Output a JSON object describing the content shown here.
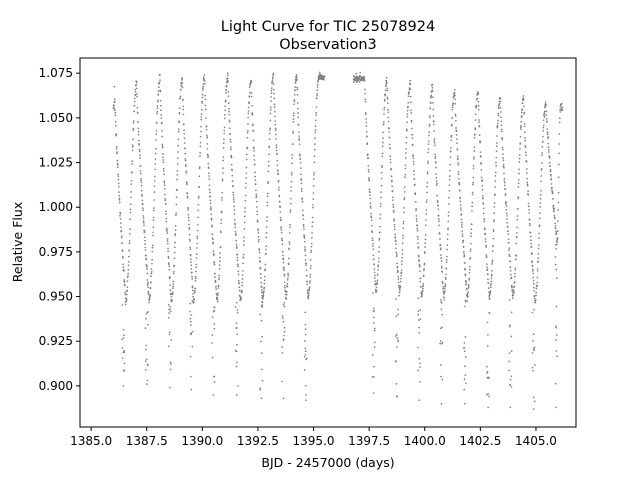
{
  "chart_data": {
    "type": "scatter",
    "title": "Light Curve for TIC 25078924",
    "subtitle": "Observation3",
    "xlabel": "BJD - 2457000 (days)",
    "ylabel": "Relative Flux",
    "xlim": [
      1384.5,
      1406.8
    ],
    "ylim": [
      0.877,
      1.0835
    ],
    "xticks": [
      1385.0,
      1387.5,
      1390.0,
      1392.5,
      1395.0,
      1397.5,
      1400.0,
      1402.5,
      1405.0
    ],
    "xtick_labels": [
      "1385.0",
      "1387.5",
      "1390.0",
      "1392.5",
      "1395.0",
      "1397.5",
      "1400.0",
      "1402.5",
      "1405.0"
    ],
    "yticks": [
      0.9,
      0.925,
      0.95,
      0.975,
      1.0,
      1.025,
      1.05,
      1.075
    ],
    "ytick_labels": [
      "0.900",
      "0.925",
      "0.950",
      "0.975",
      "1.000",
      "1.025",
      "1.050",
      "1.075"
    ],
    "grid": false,
    "marker_color": "#7f7f7f",
    "series": [
      {
        "segments": [
          {
            "x_start": 1386.0,
            "x_end": 1395.5
          },
          {
            "x_start": 1396.8,
            "x_end": 1406.2
          }
        ],
        "peaks": [
          {
            "x": 1386.05,
            "flux": 1.067
          },
          {
            "x": 1387.05,
            "flux": 1.069
          },
          {
            "x": 1388.1,
            "flux": 1.072
          },
          {
            "x": 1389.1,
            "flux": 1.072
          },
          {
            "x": 1390.1,
            "flux": 1.073
          },
          {
            "x": 1391.15,
            "flux": 1.073
          },
          {
            "x": 1392.2,
            "flux": 1.071
          },
          {
            "x": 1393.2,
            "flux": 1.074
          },
          {
            "x": 1394.25,
            "flux": 1.074
          },
          {
            "x": 1395.25,
            "flux": 1.073
          },
          {
            "x": 1397.3,
            "flux": 1.072
          },
          {
            "x": 1398.3,
            "flux": 1.071
          },
          {
            "x": 1399.35,
            "flux": 1.069
          },
          {
            "x": 1400.35,
            "flux": 1.067
          },
          {
            "x": 1401.35,
            "flux": 1.065
          },
          {
            "x": 1402.4,
            "flux": 1.064
          },
          {
            "x": 1403.4,
            "flux": 1.062
          },
          {
            "x": 1404.45,
            "flux": 1.061
          },
          {
            "x": 1405.45,
            "flux": 1.058
          },
          {
            "x": 1406.1,
            "flux": 1.056
          }
        ],
        "minima": [
          {
            "x": 1386.55,
            "flux": 0.948
          },
          {
            "x": 1387.6,
            "flux": 0.948
          },
          {
            "x": 1388.6,
            "flux": 0.947
          },
          {
            "x": 1389.6,
            "flux": 0.948
          },
          {
            "x": 1390.65,
            "flux": 0.948
          },
          {
            "x": 1391.7,
            "flux": 0.948
          },
          {
            "x": 1392.7,
            "flux": 0.948
          },
          {
            "x": 1393.75,
            "flux": 0.95
          },
          {
            "x": 1394.75,
            "flux": 0.95
          },
          {
            "x": 1397.8,
            "flux": 0.953
          },
          {
            "x": 1398.85,
            "flux": 0.953
          },
          {
            "x": 1399.85,
            "flux": 0.95
          },
          {
            "x": 1400.85,
            "flux": 0.95
          },
          {
            "x": 1401.9,
            "flux": 0.95
          },
          {
            "x": 1402.9,
            "flux": 0.95
          },
          {
            "x": 1403.95,
            "flux": 0.95
          },
          {
            "x": 1404.95,
            "flux": 0.948
          },
          {
            "x": 1405.95,
            "flux": 0.98
          }
        ],
        "lowest_points": [
          {
            "x": 1386.45,
            "flux": 0.9
          },
          {
            "x": 1387.5,
            "flux": 0.901
          },
          {
            "x": 1388.55,
            "flux": 0.899
          },
          {
            "x": 1389.5,
            "flux": 0.898
          },
          {
            "x": 1390.5,
            "flux": 0.895
          },
          {
            "x": 1391.55,
            "flux": 0.895
          },
          {
            "x": 1392.65,
            "flux": 0.893
          },
          {
            "x": 1393.65,
            "flux": 0.893
          },
          {
            "x": 1394.65,
            "flux": 0.892
          },
          {
            "x": 1397.7,
            "flux": 0.896
          },
          {
            "x": 1398.75,
            "flux": 0.894
          },
          {
            "x": 1399.75,
            "flux": 0.892
          },
          {
            "x": 1400.75,
            "flux": 0.89
          },
          {
            "x": 1401.8,
            "flux": 0.89
          },
          {
            "x": 1402.85,
            "flux": 0.888
          },
          {
            "x": 1403.85,
            "flux": 0.888
          },
          {
            "x": 1404.9,
            "flux": 0.887
          },
          {
            "x": 1405.9,
            "flux": 0.888
          }
        ]
      }
    ]
  }
}
